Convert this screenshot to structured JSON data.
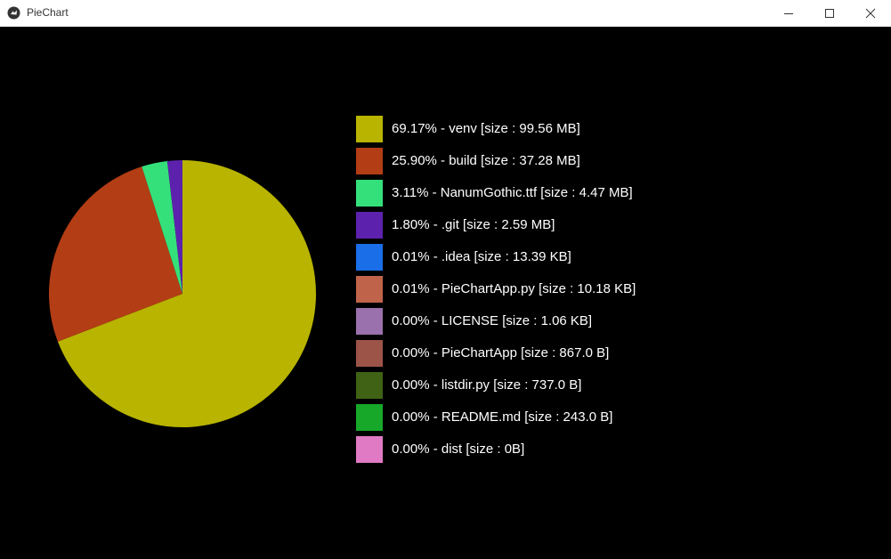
{
  "window": {
    "title": "PieChart"
  },
  "colors": {
    "background": "#000000",
    "titlebar": "#ffffff"
  },
  "chart_data": {
    "type": "pie",
    "legend_position": "right",
    "slices": [
      {
        "label": "69.17% - venv [size : 99.56 MB]",
        "value": 69.17,
        "color": "#b8b400"
      },
      {
        "label": "25.90% - build [size : 37.28 MB]",
        "value": 25.9,
        "color": "#b33d15"
      },
      {
        "label": "3.11% - NanumGothic.ttf [size : 4.47 MB]",
        "value": 3.11,
        "color": "#34e07a"
      },
      {
        "label": "1.80% - .git [size : 2.59 MB]",
        "value": 1.8,
        "color": "#5d22ad"
      },
      {
        "label": "0.01% - .idea [size : 13.39 KB]",
        "value": 0.01,
        "color": "#1a6ee8"
      },
      {
        "label": "0.01% - PieChartApp.py [size : 10.18 KB]",
        "value": 0.01,
        "color": "#bf644a"
      },
      {
        "label": "0.00% - LICENSE [size : 1.06 KB]",
        "value": 0.0,
        "color": "#9a70ad"
      },
      {
        "label": "0.00% - PieChartApp [size : 867.0 B]",
        "value": 0.0,
        "color": "#9c5448"
      },
      {
        "label": "0.00% - listdir.py [size : 737.0 B]",
        "value": 0.0,
        "color": "#3f6215"
      },
      {
        "label": "0.00% - README.md [size : 243.0 B]",
        "value": 0.0,
        "color": "#17a82a"
      },
      {
        "label": "0.00% - dist [size : 0B]",
        "value": 0.0,
        "color": "#e07ac4"
      }
    ]
  }
}
